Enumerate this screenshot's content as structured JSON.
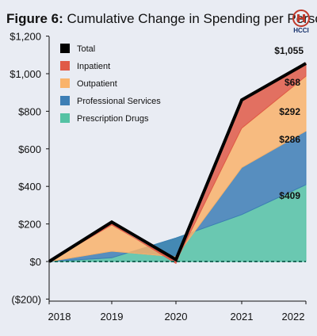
{
  "figure": {
    "number_label": "Figure 6:",
    "title": "Cumulative Change in Spending per Person",
    "logo_text": "HCCI",
    "logo_icon": "hcci-emblem-icon"
  },
  "colors": {
    "background": "#e9ecf3",
    "total": "#000000",
    "inpatient": "#e05a47",
    "outpatient": "#f9b36b",
    "professional": "#3d7eb5",
    "prescription": "#54c2a4",
    "baseline": "#1e6b5c"
  },
  "chart_data": {
    "type": "area",
    "stacked": true,
    "x": [
      "2018",
      "2019",
      "2020",
      "2021",
      "2022"
    ],
    "ylim": [
      -200,
      1200
    ],
    "yticks": [
      "($200)",
      "$0",
      "$200",
      "$400",
      "$600",
      "$800",
      "$1,000",
      "$1,200"
    ],
    "grid": false,
    "legend_position": "top-left",
    "series": [
      {
        "name": "Prescription Drugs",
        "key": "prescription",
        "values": [
          0,
          20,
          125,
          250,
          409
        ]
      },
      {
        "name": "Professional Services",
        "key": "professional",
        "values": [
          0,
          35,
          -100,
          250,
          286
        ]
      },
      {
        "name": "Outpatient",
        "key": "outpatient",
        "values": [
          0,
          140,
          -25,
          210,
          292
        ]
      },
      {
        "name": "Inpatient",
        "key": "inpatient",
        "values": [
          0,
          5,
          -10,
          150,
          68
        ]
      }
    ],
    "total": {
      "name": "Total",
      "values": [
        0,
        210,
        10,
        860,
        1055
      ]
    },
    "legend": [
      "Total",
      "Inpatient",
      "Outpatient",
      "Professional Services",
      "Prescription Drugs"
    ],
    "data_labels": [
      "$1,055",
      "$68",
      "$292",
      "$286",
      "$409"
    ]
  }
}
